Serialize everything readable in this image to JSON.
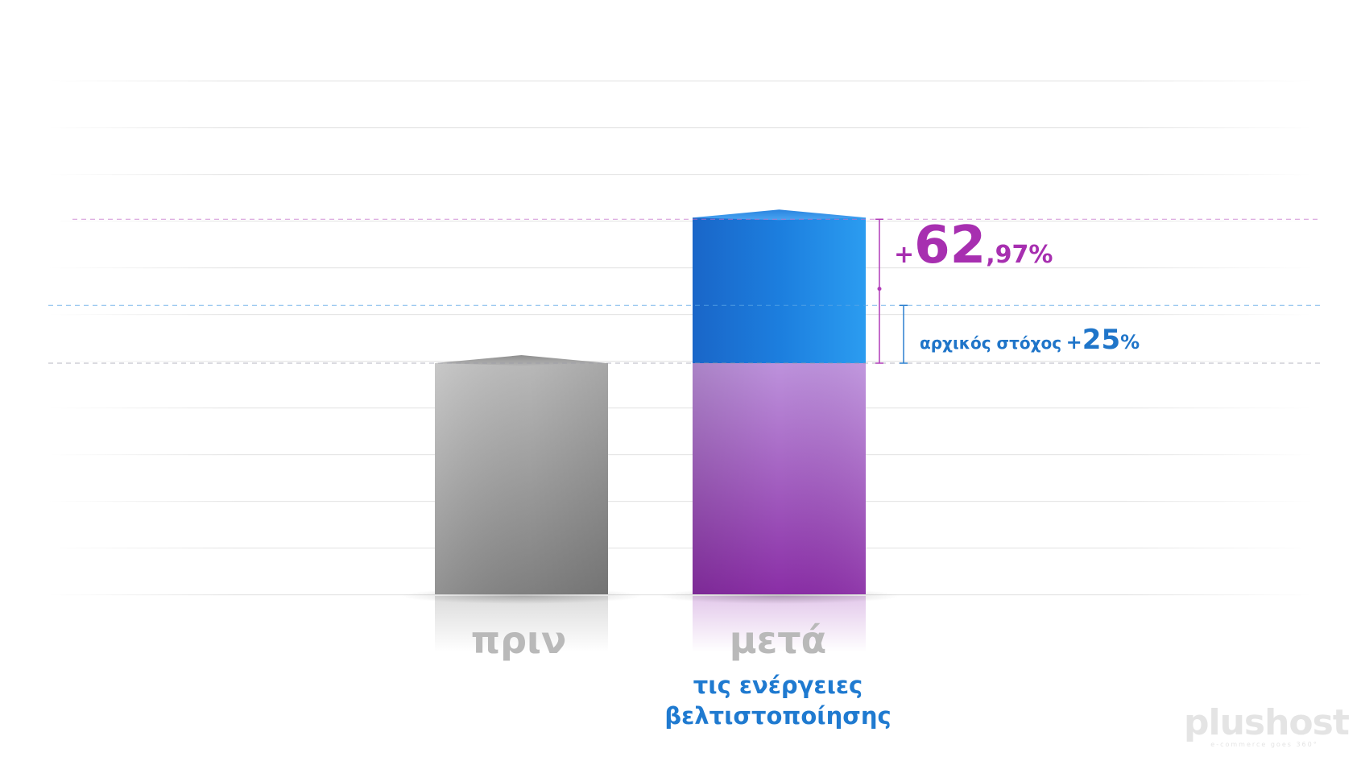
{
  "chart_data": {
    "type": "bar",
    "categories": [
      "πριν",
      "μετά"
    ],
    "category_subtitles": [
      "",
      "τις ενέργειες βελτιστοποίησης"
    ],
    "values": [
      100,
      162.97
    ],
    "target_value": 125,
    "grid": true,
    "annotations": {
      "increase": {
        "plus": "+",
        "main": "62",
        "decimals": ",97",
        "percent": "%"
      },
      "target": {
        "text": "αρχικός στόχος",
        "plus": "+",
        "main": "25",
        "percent": "%"
      }
    }
  },
  "logo": {
    "name": "plushost",
    "tagline": "e-commerce goes 360°"
  },
  "colors": {
    "before_bar": "#a8a8a8",
    "after_base": "#a44dc0",
    "after_increase": "#1e86e0",
    "increase_text": "#a72fb0",
    "target_text": "#1f75c9",
    "label_gray": "#b9b9b9"
  }
}
